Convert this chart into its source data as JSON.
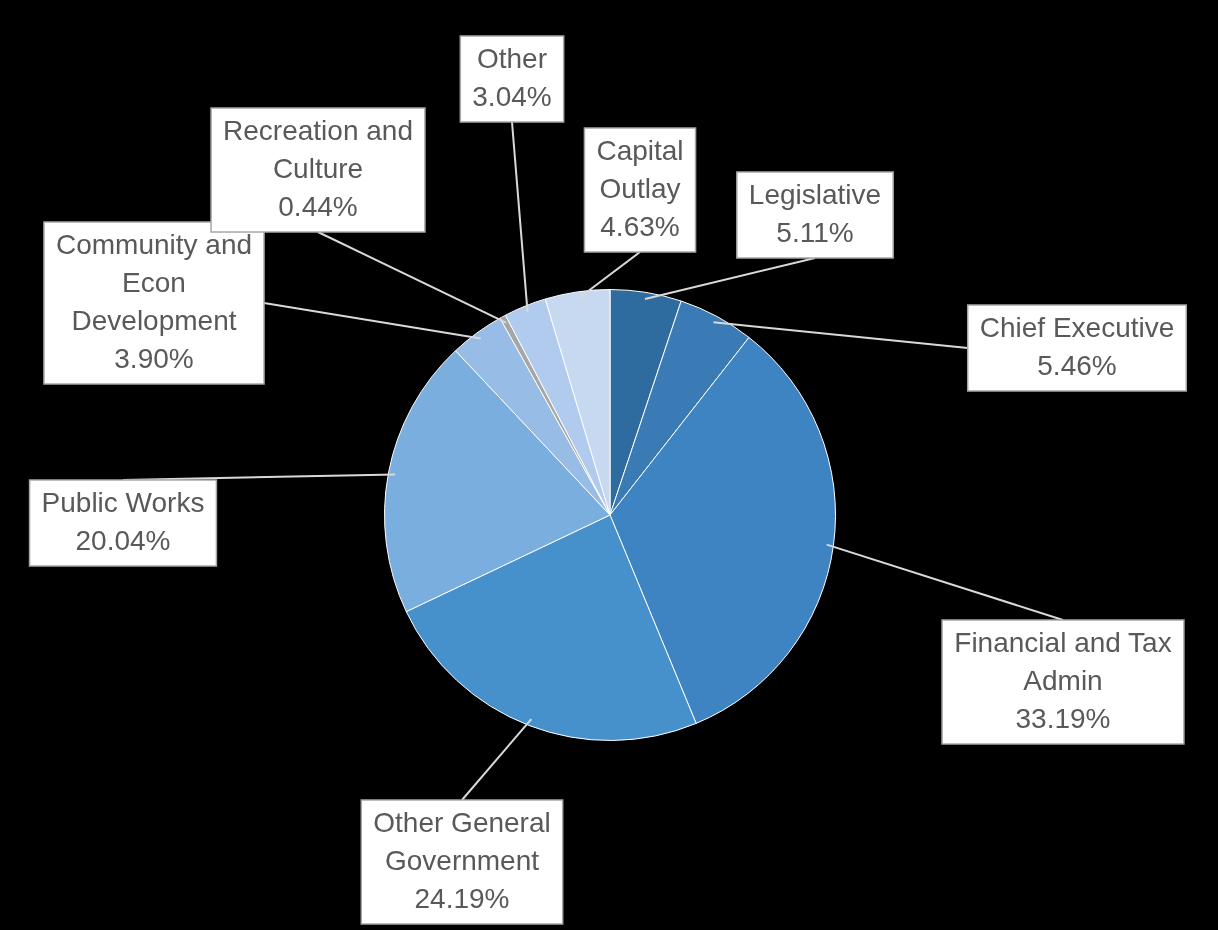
{
  "chart_data": {
    "type": "pie",
    "categories": [
      "Legislative",
      "Chief Executive",
      "Financial and Tax Admin",
      "Other General Government",
      "Public Works",
      "Community and Econ Development",
      "Recreation and Culture",
      "Other",
      "Capital Outlay"
    ],
    "values": [
      5.11,
      5.46,
      33.19,
      24.19,
      20.04,
      3.9,
      0.44,
      3.04,
      4.63
    ],
    "value_labels": [
      "5.11%",
      "5.46%",
      "33.19%",
      "24.19%",
      "20.04%",
      "3.90%",
      "0.44%",
      "3.04%",
      "4.63%"
    ],
    "colors": [
      "#2e6b9e",
      "#3a7bb5",
      "#3f84c2",
      "#4690cc",
      "#7aaede",
      "#97bde6",
      "#a6a6a6",
      "#b0cbee",
      "#c6d9f1"
    ]
  }
}
